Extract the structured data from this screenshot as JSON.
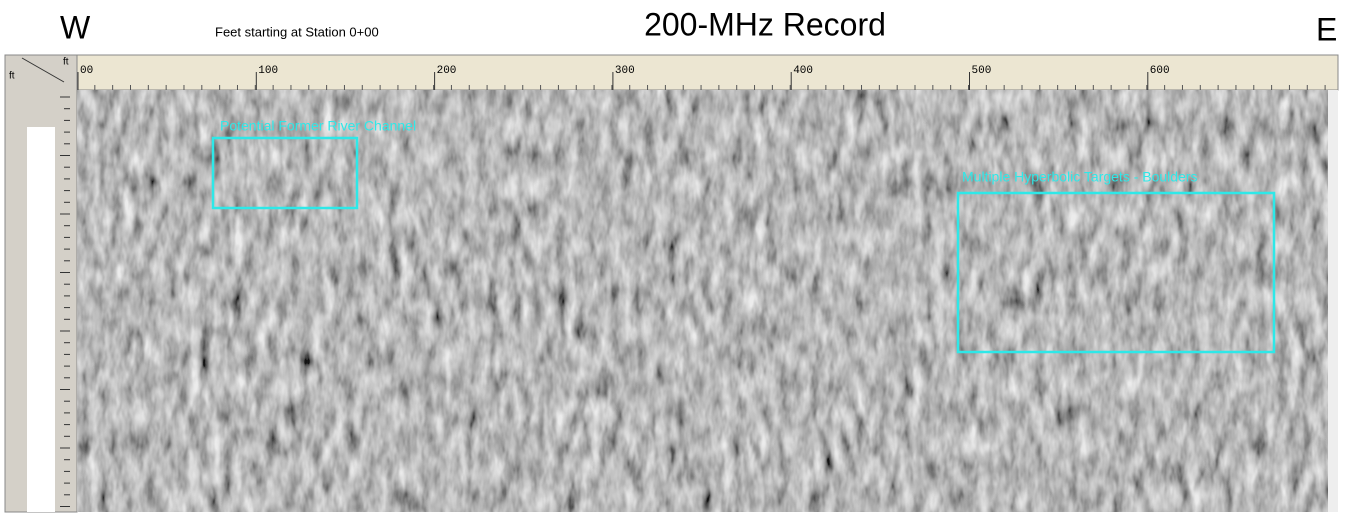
{
  "header": {
    "west": "W",
    "subtitle": "Feet starting at Station 0+00",
    "title": "200-MHz Record",
    "east": "E"
  },
  "axis": {
    "corner_top": "ft",
    "corner_left": "ft",
    "ticks": [
      "00",
      "100",
      "200",
      "300",
      "400",
      "500",
      "600"
    ]
  },
  "annotations": [
    {
      "label": "Potential Former River Channel"
    },
    {
      "label": "Multiple Hyperbolic Targets - Boulders"
    }
  ]
}
